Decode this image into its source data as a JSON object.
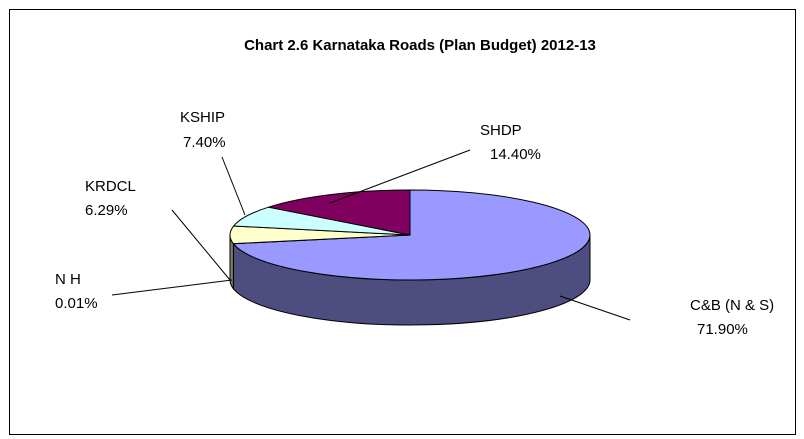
{
  "chart_data": {
    "type": "pie",
    "title": "Chart 2.6 Karnataka Roads (Plan Budget) 2012-13",
    "categories": [
      "C&B (N & S)",
      "N H",
      "KRDCL",
      "KSHIP",
      "SHDP"
    ],
    "values": [
      71.9,
      0.01,
      6.29,
      7.4,
      14.4
    ],
    "value_labels": [
      "71.90%",
      "0.01%",
      "6.29%",
      "7.40%",
      "14.40%"
    ],
    "colors": [
      "#9999ff",
      "#993366",
      "#ffffcc",
      "#ccffff",
      "#800060"
    ]
  }
}
